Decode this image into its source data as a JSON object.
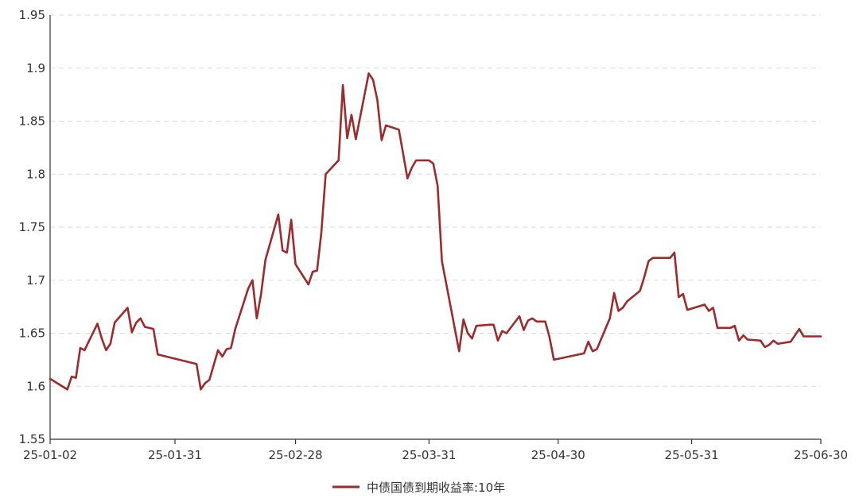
{
  "chart_data": {
    "type": "line",
    "y_range": [
      1.55,
      1.95
    ],
    "y_ticks": [
      "1.55",
      "1.6",
      "1.65",
      "1.7",
      "1.75",
      "1.8",
      "1.85",
      "1.9",
      "1.95"
    ],
    "x_ticks": [
      "25-01-02",
      "25-01-31",
      "25-02-28",
      "25-03-31",
      "25-04-30",
      "25-05-31",
      "25-06-30"
    ],
    "x_range": [
      "2025-01-02",
      "2025-06-30"
    ],
    "grid": "horizontal dashed",
    "legend_position": "bottom-center",
    "color": "#9e2a2b",
    "series": [
      {
        "name": "中债国债到期收益率:10年",
        "points": [
          [
            "2025-01-02",
            1.607
          ],
          [
            "2025-01-06",
            1.597
          ],
          [
            "2025-01-07",
            1.609
          ],
          [
            "2025-01-08",
            1.608
          ],
          [
            "2025-01-09",
            1.636
          ],
          [
            "2025-01-10",
            1.634
          ],
          [
            "2025-01-13",
            1.659
          ],
          [
            "2025-01-14",
            1.645
          ],
          [
            "2025-01-15",
            1.634
          ],
          [
            "2025-01-16",
            1.64
          ],
          [
            "2025-01-17",
            1.66
          ],
          [
            "2025-01-20",
            1.674
          ],
          [
            "2025-01-21",
            1.651
          ],
          [
            "2025-01-22",
            1.66
          ],
          [
            "2025-01-23",
            1.664
          ],
          [
            "2025-01-24",
            1.656
          ],
          [
            "2025-01-26",
            1.654
          ],
          [
            "2025-01-27",
            1.63
          ],
          [
            "2025-02-05",
            1.621
          ],
          [
            "2025-02-06",
            1.597
          ],
          [
            "2025-02-07",
            1.603
          ],
          [
            "2025-02-08",
            1.606
          ],
          [
            "2025-02-10",
            1.634
          ],
          [
            "2025-02-11",
            1.628
          ],
          [
            "2025-02-12",
            1.635
          ],
          [
            "2025-02-13",
            1.636
          ],
          [
            "2025-02-14",
            1.654
          ],
          [
            "2025-02-17",
            1.692
          ],
          [
            "2025-02-18",
            1.7
          ],
          [
            "2025-02-19",
            1.664
          ],
          [
            "2025-02-20",
            1.687
          ],
          [
            "2025-02-21",
            1.719
          ],
          [
            "2025-02-24",
            1.762
          ],
          [
            "2025-02-25",
            1.728
          ],
          [
            "2025-02-26",
            1.726
          ],
          [
            "2025-02-27",
            1.757
          ],
          [
            "2025-02-28",
            1.715
          ],
          [
            "2025-03-03",
            1.696
          ],
          [
            "2025-03-04",
            1.708
          ],
          [
            "2025-03-05",
            1.709
          ],
          [
            "2025-03-06",
            1.745
          ],
          [
            "2025-03-07",
            1.8
          ],
          [
            "2025-03-10",
            1.813
          ],
          [
            "2025-03-11",
            1.884
          ],
          [
            "2025-03-12",
            1.834
          ],
          [
            "2025-03-13",
            1.856
          ],
          [
            "2025-03-14",
            1.833
          ],
          [
            "2025-03-17",
            1.895
          ],
          [
            "2025-03-18",
            1.889
          ],
          [
            "2025-03-19",
            1.87
          ],
          [
            "2025-03-20",
            1.832
          ],
          [
            "2025-03-21",
            1.846
          ],
          [
            "2025-03-24",
            1.842
          ],
          [
            "2025-03-26",
            1.796
          ],
          [
            "2025-03-27",
            1.806
          ],
          [
            "2025-03-28",
            1.813
          ],
          [
            "2025-03-31",
            1.813
          ],
          [
            "2025-04-01",
            1.81
          ],
          [
            "2025-04-02",
            1.789
          ],
          [
            "2025-04-03",
            1.718
          ],
          [
            "2025-04-07",
            1.633
          ],
          [
            "2025-04-08",
            1.663
          ],
          [
            "2025-04-09",
            1.65
          ],
          [
            "2025-04-10",
            1.645
          ],
          [
            "2025-04-11",
            1.657
          ],
          [
            "2025-04-14",
            1.658
          ],
          [
            "2025-04-15",
            1.658
          ],
          [
            "2025-04-16",
            1.643
          ],
          [
            "2025-04-17",
            1.652
          ],
          [
            "2025-04-18",
            1.65
          ],
          [
            "2025-04-21",
            1.666
          ],
          [
            "2025-04-22",
            1.653
          ],
          [
            "2025-04-23",
            1.662
          ],
          [
            "2025-04-24",
            1.664
          ],
          [
            "2025-04-25",
            1.661
          ],
          [
            "2025-04-27",
            1.661
          ],
          [
            "2025-04-28",
            1.646
          ],
          [
            "2025-04-29",
            1.625
          ],
          [
            "2025-05-06",
            1.631
          ],
          [
            "2025-05-07",
            1.642
          ],
          [
            "2025-05-08",
            1.633
          ],
          [
            "2025-05-09",
            1.635
          ],
          [
            "2025-05-12",
            1.664
          ],
          [
            "2025-05-13",
            1.688
          ],
          [
            "2025-05-14",
            1.671
          ],
          [
            "2025-05-15",
            1.674
          ],
          [
            "2025-05-16",
            1.68
          ],
          [
            "2025-05-19",
            1.69
          ],
          [
            "2025-05-20",
            1.703
          ],
          [
            "2025-05-21",
            1.718
          ],
          [
            "2025-05-22",
            1.721
          ],
          [
            "2025-05-23",
            1.721
          ],
          [
            "2025-05-26",
            1.721
          ],
          [
            "2025-05-27",
            1.726
          ],
          [
            "2025-05-28",
            1.684
          ],
          [
            "2025-05-29",
            1.687
          ],
          [
            "2025-05-30",
            1.672
          ],
          [
            "2025-06-03",
            1.677
          ],
          [
            "2025-06-04",
            1.671
          ],
          [
            "2025-06-05",
            1.674
          ],
          [
            "2025-06-06",
            1.655
          ],
          [
            "2025-06-09",
            1.655
          ],
          [
            "2025-06-10",
            1.657
          ],
          [
            "2025-06-11",
            1.643
          ],
          [
            "2025-06-12",
            1.648
          ],
          [
            "2025-06-13",
            1.644
          ],
          [
            "2025-06-16",
            1.643
          ],
          [
            "2025-06-17",
            1.637
          ],
          [
            "2025-06-18",
            1.639
          ],
          [
            "2025-06-19",
            1.643
          ],
          [
            "2025-06-20",
            1.64
          ],
          [
            "2025-06-23",
            1.642
          ],
          [
            "2025-06-24",
            1.648
          ],
          [
            "2025-06-25",
            1.654
          ],
          [
            "2025-06-26",
            1.647
          ],
          [
            "2025-06-30",
            1.647
          ]
        ]
      }
    ]
  }
}
